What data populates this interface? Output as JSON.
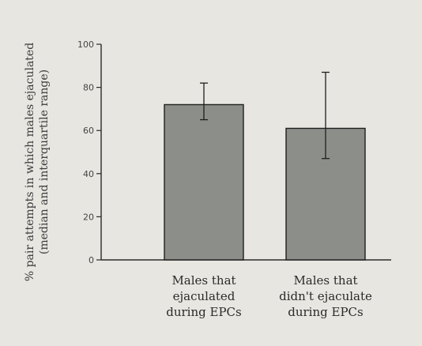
{
  "chart_data": {
    "type": "bar",
    "title": "",
    "xlabel": "",
    "ylabel": "% pair attempts in which males ejaculated",
    "ylabel_sub": "(median and interquartile range)",
    "ylim": [
      0,
      100
    ],
    "yticks": [
      0,
      20,
      40,
      60,
      80,
      100
    ],
    "grid": false,
    "categories": [
      [
        "Males that",
        "ejaculated",
        "during EPCs"
      ],
      [
        "Males that",
        "didn't ejaculate",
        "during EPCs"
      ]
    ],
    "values": [
      72,
      61
    ],
    "error_low": [
      65,
      47
    ],
    "error_high": [
      82,
      87
    ],
    "bar_color": "#8c8f89",
    "axis_color": "#2b2b2b"
  }
}
